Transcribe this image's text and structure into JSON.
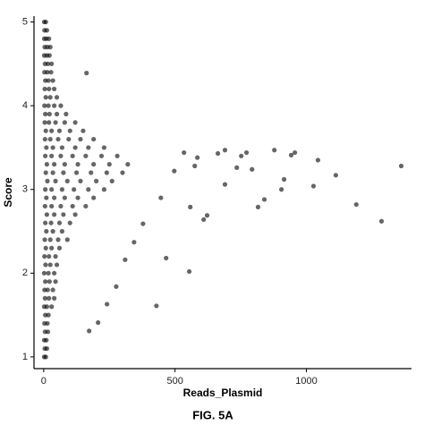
{
  "chart_data": {
    "type": "scatter",
    "xlabel": "Reads_Plasmid",
    "ylabel": "Score",
    "caption": "FIG. 5A",
    "color": "#000000",
    "x": [
      2,
      8,
      3,
      12,
      2,
      10,
      20,
      4,
      14,
      25,
      2,
      12,
      22,
      5,
      16,
      30,
      3,
      14,
      28,
      6,
      18,
      35,
      4,
      20,
      40,
      8,
      25,
      50,
      3,
      18,
      40,
      65,
      6,
      22,
      50,
      85,
      4,
      20,
      45,
      80,
      120,
      8,
      30,
      60,
      100,
      150,
      5,
      25,
      55,
      95,
      140,
      190,
      10,
      35,
      70,
      120,
      170,
      230,
      6,
      30,
      65,
      110,
      160,
      220,
      280,
      12,
      40,
      80,
      130,
      190,
      250,
      320,
      8,
      35,
      75,
      125,
      180,
      240,
      300,
      14,
      45,
      90,
      140,
      200,
      260,
      6,
      30,
      70,
      115,
      170,
      230,
      10,
      40,
      80,
      130,
      190,
      5,
      30,
      65,
      110,
      160,
      12,
      40,
      75,
      120,
      6,
      28,
      60,
      100,
      10,
      35,
      70,
      4,
      25,
      55,
      90,
      8,
      30,
      60,
      3,
      20,
      45,
      7,
      25,
      50,
      2,
      18,
      40,
      6,
      22,
      45,
      3,
      15,
      35,
      5,
      20,
      40,
      2,
      12,
      30,
      6,
      18,
      3,
      14,
      5,
      16,
      2,
      10,
      4,
      12,
      2,
      8,
      1361,
      1286,
      1190,
      1112,
      1044,
      1027,
      956,
      942,
      915,
      905,
      878,
      840,
      816,
      793,
      772,
      752,
      735,
      690,
      690,
      663,
      609,
      554,
      429,
      466,
      622,
      585,
      575,
      558,
      163,
      534,
      497,
      446,
      378,
      344,
      310,
      276,
      241,
      207,
      173
    ],
    "values": [
      5.0,
      5.0,
      4.9,
      4.9,
      4.8,
      4.8,
      4.8,
      4.7,
      4.7,
      4.7,
      4.6,
      4.6,
      4.6,
      4.5,
      4.5,
      4.5,
      4.4,
      4.4,
      4.4,
      4.3,
      4.3,
      4.3,
      4.2,
      4.2,
      4.2,
      4.1,
      4.1,
      4.1,
      4.0,
      4.0,
      4.0,
      4.0,
      3.9,
      3.9,
      3.9,
      3.9,
      3.8,
      3.8,
      3.8,
      3.8,
      3.8,
      3.7,
      3.7,
      3.7,
      3.7,
      3.7,
      3.6,
      3.6,
      3.6,
      3.6,
      3.6,
      3.6,
      3.5,
      3.5,
      3.5,
      3.5,
      3.5,
      3.5,
      3.4,
      3.4,
      3.4,
      3.4,
      3.4,
      3.4,
      3.4,
      3.3,
      3.3,
      3.3,
      3.3,
      3.3,
      3.3,
      3.3,
      3.2,
      3.2,
      3.2,
      3.2,
      3.2,
      3.2,
      3.2,
      3.1,
      3.1,
      3.1,
      3.1,
      3.1,
      3.1,
      3.0,
      3.0,
      3.0,
      3.0,
      3.0,
      3.0,
      2.9,
      2.9,
      2.9,
      2.9,
      2.9,
      2.8,
      2.8,
      2.8,
      2.8,
      2.8,
      2.7,
      2.7,
      2.7,
      2.7,
      2.6,
      2.6,
      2.6,
      2.6,
      2.5,
      2.5,
      2.5,
      2.4,
      2.4,
      2.4,
      2.4,
      2.3,
      2.3,
      2.3,
      2.2,
      2.2,
      2.2,
      2.1,
      2.1,
      2.1,
      2.0,
      2.0,
      2.0,
      1.9,
      1.9,
      1.9,
      1.8,
      1.8,
      1.8,
      1.7,
      1.7,
      1.7,
      1.6,
      1.6,
      1.6,
      1.5,
      1.5,
      1.4,
      1.4,
      1.3,
      1.3,
      1.2,
      1.2,
      1.1,
      1.1,
      1.0,
      1.0,
      3.28,
      2.62,
      2.82,
      3.17,
      3.35,
      3.04,
      3.44,
      3.41,
      3.12,
      3.0,
      3.47,
      2.88,
      2.79,
      3.24,
      3.44,
      3.4,
      3.26,
      3.47,
      3.06,
      3.43,
      2.64,
      2.02,
      1.61,
      2.18,
      2.69,
      3.38,
      3.28,
      2.79,
      4.39,
      3.44,
      3.22,
      2.9,
      2.59,
      2.37,
      2.16,
      1.84,
      1.63,
      1.41,
      1.31
    ],
    "xlim": [
      -37,
      1400
    ],
    "ylim": [
      0.86,
      5.07
    ],
    "xticks": [
      0,
      500,
      1000
    ],
    "yticks": [
      1,
      2,
      3,
      4,
      5
    ],
    "grid": false
  }
}
